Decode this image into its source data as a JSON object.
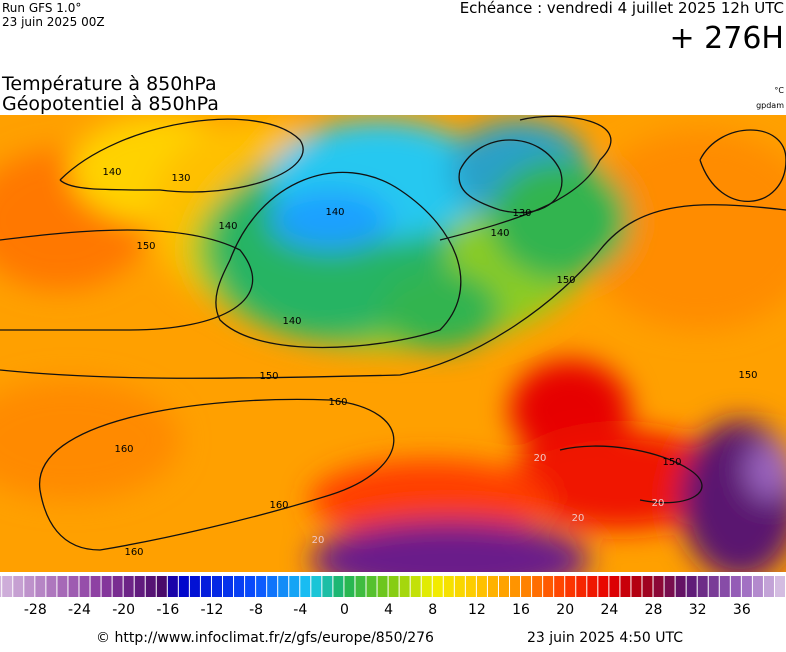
{
  "header": {
    "run": "Run GFS 1.0°",
    "run_date": "23 juin 2025 00Z",
    "valid": "Echéance : vendredi 4 juillet 2025 12h UTC",
    "lead": "+ 276H"
  },
  "titles": {
    "line1": "Température à 850hPa",
    "line2": "Géopotentiel à 850hPa",
    "unit1": "°C",
    "unit2": "gpdam"
  },
  "contour_labels": [
    "140",
    "130",
    "140",
    "150",
    "140",
    "140",
    "150",
    "160",
    "160",
    "160",
    "160",
    "130",
    "140",
    "150",
    "150",
    "20",
    "20",
    "20",
    "20",
    "150"
  ],
  "colorbar": {
    "lim": [
      -31.2,
      40
    ],
    "ticks": [
      -28,
      -24,
      -20,
      -16,
      -12,
      -8,
      -4,
      0,
      4,
      8,
      12,
      16,
      20,
      24,
      28,
      32,
      36
    ],
    "stops": [
      {
        "value": -31,
        "color": "#d2b4dc"
      },
      {
        "value": -22,
        "color": "#8a3aa0"
      },
      {
        "value": -16.5,
        "color": "#4a0a6a"
      },
      {
        "value": -15,
        "color": "#0000c8"
      },
      {
        "value": -8,
        "color": "#0a50ff"
      },
      {
        "value": -3,
        "color": "#19c8f0"
      },
      {
        "value": 0,
        "color": "#1eb45a"
      },
      {
        "value": 4,
        "color": "#78c814"
      },
      {
        "value": 8,
        "color": "#f0f000"
      },
      {
        "value": 12,
        "color": "#ffc800"
      },
      {
        "value": 16,
        "color": "#ff8c00"
      },
      {
        "value": 20,
        "color": "#ff3c00"
      },
      {
        "value": 24,
        "color": "#e60000"
      },
      {
        "value": 27,
        "color": "#aa0014"
      },
      {
        "value": 31,
        "color": "#5a1470"
      },
      {
        "value": 36,
        "color": "#9a64be"
      },
      {
        "value": 40,
        "color": "#dcc8e6"
      }
    ]
  },
  "footer": {
    "source": "© http://www.infoclimat.fr/z/gfs/europe/850/276",
    "issued": "23 juin 2025  4:50 UTC"
  }
}
